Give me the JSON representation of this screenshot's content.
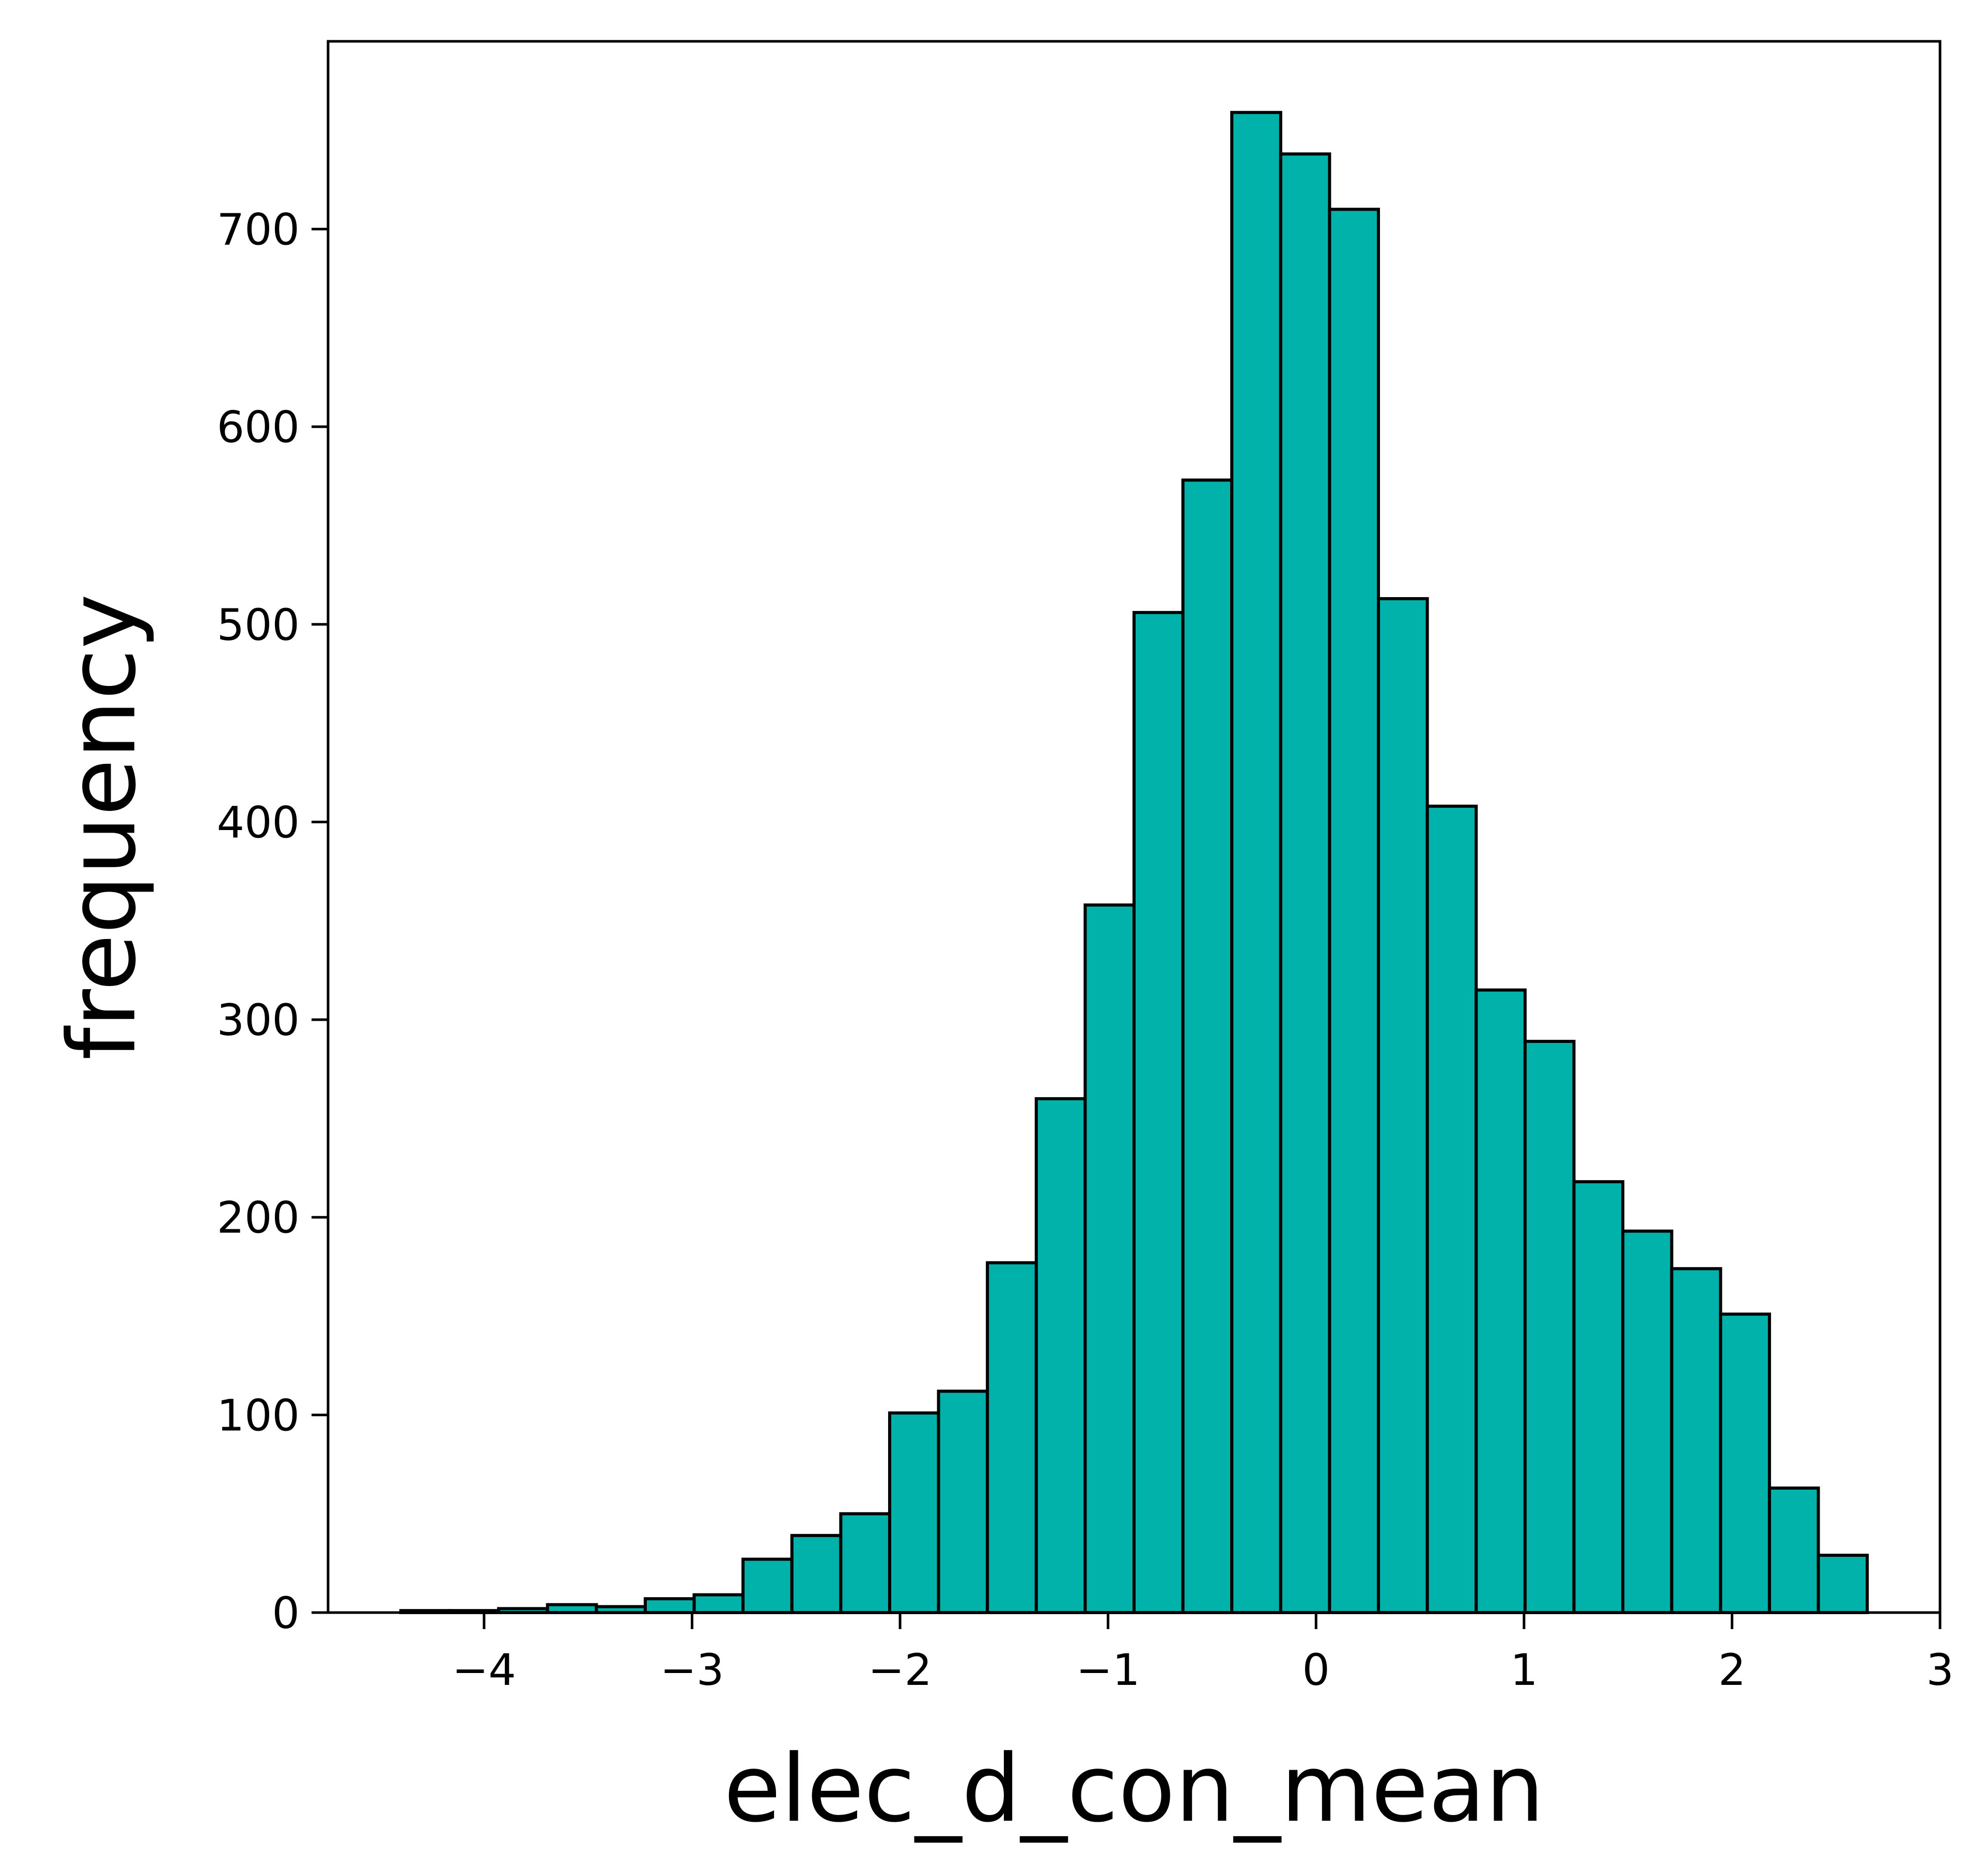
{
  "chart_data": {
    "type": "bar",
    "title": "",
    "xlabel": "elec_d_con_mean",
    "ylabel": "frequency",
    "xlim": [
      -4.75,
      3.0
    ],
    "ylim": [
      0,
      795
    ],
    "x_ticks": [
      -4,
      -3,
      -2,
      -1,
      0,
      1,
      2,
      3
    ],
    "x_tick_labels": [
      "−4",
      "−3",
      "−2",
      "−1",
      "0",
      "1",
      "2",
      "3"
    ],
    "y_ticks": [
      0,
      100,
      200,
      300,
      400,
      500,
      600,
      700
    ],
    "y_tick_labels": [
      "0",
      "100",
      "200",
      "300",
      "400",
      "500",
      "600",
      "700"
    ],
    "grid": false,
    "bar_color": "#00b2a9",
    "edge_color": "#000000",
    "bin_edges": [
      -4.4,
      -4.165,
      -3.93,
      -3.695,
      -3.46,
      -3.225,
      -2.99,
      -2.755,
      -2.52,
      -2.285,
      -2.05,
      -1.815,
      -1.58,
      -1.345,
      -1.11,
      -0.875,
      -0.64,
      -0.405,
      -0.17,
      0.065,
      0.3,
      0.535,
      0.77,
      1.005,
      1.24,
      1.475,
      1.71,
      1.945,
      2.18,
      2.415,
      2.65
    ],
    "values": [
      1,
      1,
      2,
      4,
      3,
      7,
      9,
      27,
      39,
      50,
      101,
      112,
      177,
      260,
      358,
      506,
      573,
      759,
      738,
      710,
      513,
      408,
      315,
      289,
      218,
      193,
      174,
      151,
      63,
      29
    ]
  }
}
